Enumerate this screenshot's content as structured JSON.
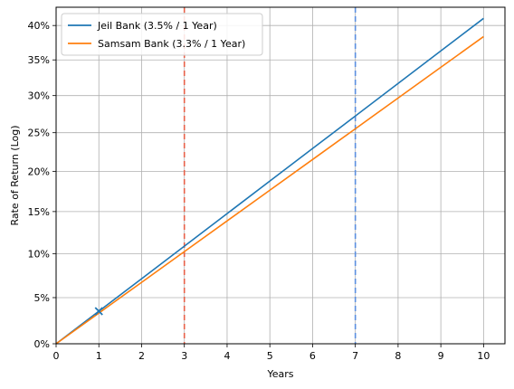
{
  "chart_data": {
    "type": "line",
    "xlabel": "Years",
    "ylabel": "Rate of Return (Log)",
    "xlim": [
      0,
      10.5
    ],
    "ylim": [
      0,
      0.4273
    ],
    "y_scale": "log1p",
    "x_ticks": [
      0,
      1,
      2,
      3,
      4,
      5,
      6,
      7,
      8,
      9,
      10
    ],
    "x_tick_labels": [
      "0",
      "1",
      "2",
      "3",
      "4",
      "5",
      "6",
      "7",
      "8",
      "9",
      "10"
    ],
    "y_ticks": [
      0,
      0.05,
      0.1,
      0.15,
      0.2,
      0.25,
      0.3,
      0.35,
      0.4
    ],
    "y_tick_labels": [
      "0%",
      "5%",
      "10%",
      "15%",
      "20%",
      "25%",
      "30%",
      "35%",
      "40%"
    ],
    "grid": true,
    "legend_position": "top-left",
    "series": [
      {
        "name": "Jeil Bank (3.5% / 1 Year)",
        "color": "#1f77b4",
        "x": [
          0,
          1,
          2,
          3,
          4,
          5,
          6,
          7,
          8,
          9,
          10
        ],
        "values": [
          0,
          0.035,
          0.0712,
          0.1087,
          0.1475,
          0.1877,
          0.2293,
          0.2723,
          0.3168,
          0.3629,
          0.4106
        ]
      },
      {
        "name": "Samsam Bank (3.3% / 1 Year)",
        "color": "#ff7f0e",
        "x": [
          0,
          1,
          2,
          3,
          4,
          5,
          6,
          7,
          8,
          9,
          10
        ],
        "values": [
          0,
          0.033,
          0.0671,
          0.1023,
          0.1387,
          0.1763,
          0.2151,
          0.2552,
          0.2967,
          0.3395,
          0.3837
        ]
      }
    ],
    "vertical_lines": [
      {
        "x": 3,
        "color": "#e8624a",
        "style": "dashed"
      },
      {
        "x": 7,
        "color": "#5b8fe0",
        "style": "dashed"
      }
    ],
    "markers": [
      {
        "x": 1,
        "y": 0.035,
        "symbol": "x",
        "color": "#1f77b4"
      }
    ]
  }
}
